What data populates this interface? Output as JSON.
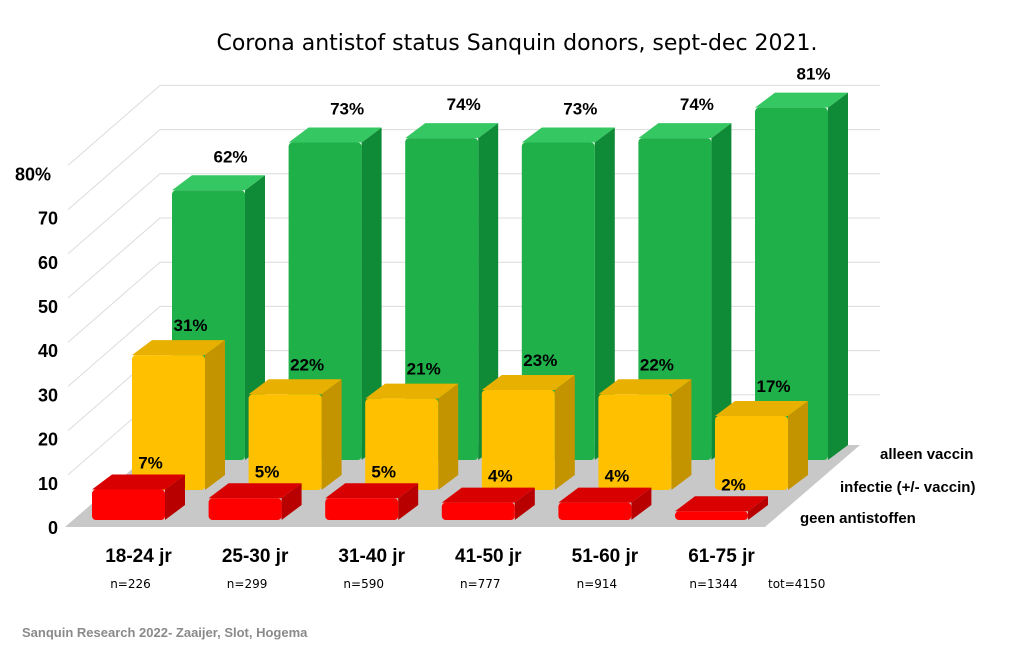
{
  "chart_data": {
    "type": "bar",
    "style": "3d-clustered-rows",
    "title": "Corona antistof status Sanquin donors, sept-dec 2021.",
    "categories": [
      "18-24 jr",
      "25-30 jr",
      "31-40 jr",
      "41-50 jr",
      "51-60 jr",
      "61-75 jr"
    ],
    "n_labels": [
      "n=226",
      "n=299",
      "n=590",
      "n=777",
      "n=914",
      "n=1344"
    ],
    "total_label": "tot=4150",
    "yticks": [
      "0",
      "10",
      "20",
      "30",
      "40",
      "50",
      "60",
      "70",
      "80%"
    ],
    "ylim": [
      0,
      80
    ],
    "unit": "%",
    "grid": true,
    "legend_placement": "right, beside each row",
    "series": [
      {
        "name": "alleen vaccin",
        "values": [
          62,
          73,
          74,
          73,
          74,
          81
        ],
        "color": "#1fb04a"
      },
      {
        "name": "infectie (+/-  vaccin)",
        "values": [
          31,
          22,
          21,
          23,
          22,
          17
        ],
        "color": "#ffc000"
      },
      {
        "name": "geen antistoffen",
        "values": [
          7,
          5,
          5,
          4,
          4,
          2
        ],
        "color": "#ff0000"
      }
    ],
    "footer": "Sanquin Research 2022- Zaaijer, Slot, Hogema"
  }
}
